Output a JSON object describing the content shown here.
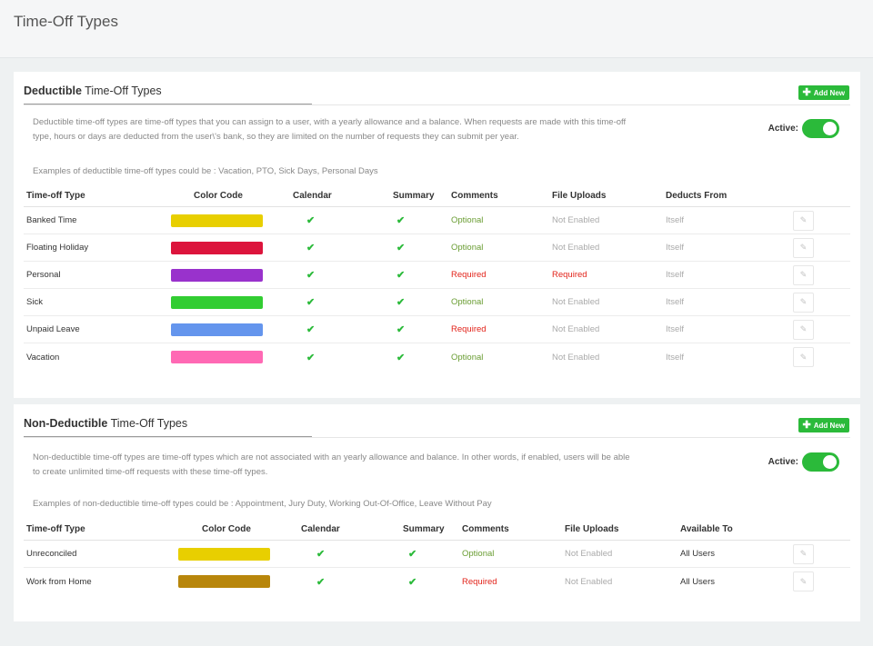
{
  "page": {
    "title": "Time-Off Types"
  },
  "icons": {
    "add": "plus-icon",
    "check": "checkmark-icon",
    "edit": "pencil-icon"
  },
  "colors": {
    "accent": "#2bba3a",
    "optional": "#6a9d33",
    "required": "#e2231a"
  },
  "deductible": {
    "title_bold": "Deductible",
    "title_rest": " Time-Off Types",
    "add_label": "Add New",
    "description": "Deductible time-off types are time-off types that you can assign to a user, with a yearly allowance and a balance. When requests are made with this time-off type, hours or days are deducted from the user\\'s bank, so they are limited on the number of requests they can submit per year.",
    "examples": "Examples of deductible time-off types could be : Vacation, PTO, Sick Days, Personal Days",
    "active_label": "Active:",
    "active": true,
    "columns": [
      "Time-off Type",
      "Color Code",
      "Calendar",
      "Summary",
      "Comments",
      "File Uploads",
      "Deducts From"
    ],
    "rows": [
      {
        "name": "Banked Time",
        "color": "#e8cf00",
        "calendar": "✔",
        "summary": "✔",
        "comments": "Optional",
        "uploads": "Not Enabled",
        "extra": "Itself"
      },
      {
        "name": "Floating Holiday",
        "color": "#dc143c",
        "calendar": "✔",
        "summary": "✔",
        "comments": "Optional",
        "uploads": "Not Enabled",
        "extra": "Itself"
      },
      {
        "name": "Personal",
        "color": "#9932cc",
        "calendar": "✔",
        "summary": "✔",
        "comments": "Required",
        "uploads": "Required",
        "extra": "Itself"
      },
      {
        "name": "Sick",
        "color": "#32cd32",
        "calendar": "✔",
        "summary": "✔",
        "comments": "Optional",
        "uploads": "Not Enabled",
        "extra": "Itself"
      },
      {
        "name": "Unpaid Leave",
        "color": "#6495ed",
        "calendar": "✔",
        "summary": "✔",
        "comments": "Required",
        "uploads": "Not Enabled",
        "extra": "Itself"
      },
      {
        "name": "Vacation",
        "color": "#ff69b4",
        "calendar": "✔",
        "summary": "✔",
        "comments": "Optional",
        "uploads": "Not Enabled",
        "extra": "Itself"
      }
    ]
  },
  "nondeductible": {
    "title_bold": "Non-Deductible",
    "title_rest": " Time-Off Types",
    "add_label": "Add New",
    "description": "Non-deductible time-off types are time-off types which are not associated with an yearly allowance and balance. In other words, if enabled, users will be able to create unlimited time-off requests with these time-off types.",
    "examples": "Examples of non-deductible time-off types could be : Appointment, Jury Duty, Working Out-Of-Office, Leave Without Pay",
    "active_label": "Active:",
    "active": true,
    "columns": [
      "Time-off Type",
      "Color Code",
      "Calendar",
      "Summary",
      "Comments",
      "File Uploads",
      "Available To"
    ],
    "rows": [
      {
        "name": "Unreconciled",
        "color": "#e8cf00",
        "calendar": "✔",
        "summary": "✔",
        "comments": "Optional",
        "uploads": "Not Enabled",
        "extra": "All Users"
      },
      {
        "name": "Work from Home",
        "color": "#b8860b",
        "calendar": "✔",
        "summary": "✔",
        "comments": "Required",
        "uploads": "Not Enabled",
        "extra": "All Users"
      }
    ]
  }
}
